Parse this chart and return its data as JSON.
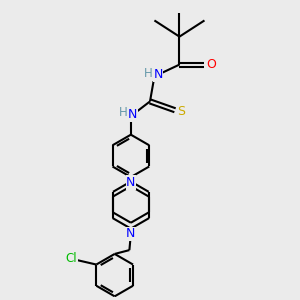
{
  "background_color": "#ebebeb",
  "atom_colors": {
    "N": "#0000ff",
    "O": "#ff0000",
    "S": "#ccaa00",
    "Cl": "#00bb00",
    "C": "#000000",
    "H": "#6699aa"
  },
  "bond_color": "#000000",
  "bond_width": 1.5,
  "figsize": [
    3.0,
    3.0
  ],
  "dpi": 100
}
